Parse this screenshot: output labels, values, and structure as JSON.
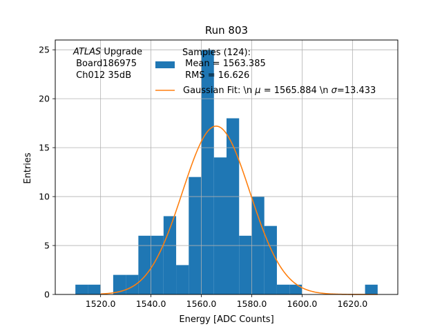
{
  "chart_data": {
    "type": "bar",
    "title": "Run 803",
    "xlabel": "Energy [ADC Counts]",
    "ylabel": "Entries",
    "xlim": [
      1502,
      1638
    ],
    "ylim": [
      0,
      26
    ],
    "grid": true,
    "x_ticks": [
      1520,
      1540,
      1560,
      1580,
      1600,
      1620
    ],
    "x_tick_labels": [
      "1520.0",
      "1540.0",
      "1560.0",
      "1580.0",
      "1600.0",
      "1620.0"
    ],
    "y_ticks": [
      0,
      5,
      10,
      15,
      20,
      25
    ],
    "y_tick_labels": [
      "0",
      "5",
      "10",
      "15",
      "20",
      "25"
    ],
    "bin_edges": [
      1510,
      1515,
      1520,
      1525,
      1530,
      1535,
      1540,
      1545,
      1550,
      1555,
      1560,
      1565,
      1570,
      1575,
      1580,
      1585,
      1590,
      1595,
      1600,
      1605,
      1610,
      1615,
      1620,
      1625,
      1630
    ],
    "series": [
      {
        "name": "Samples (124):\n Mean = 1563.385\n RMS = 16.626",
        "kind": "histogram",
        "color": "#1f77b4",
        "values": [
          1,
          1,
          0,
          2,
          2,
          6,
          6,
          8,
          3,
          12,
          25,
          14,
          18,
          6,
          10,
          7,
          1,
          1,
          0,
          0,
          0,
          0,
          0,
          1
        ]
      },
      {
        "name": "Gaussian Fit: \\n μ = 1565.884 \\n σ=13.433",
        "kind": "line",
        "color": "#ff7f0e",
        "mu": 1565.884,
        "sigma": 13.433,
        "amplitude": 17.2,
        "x_range": [
          1520,
          1630
        ]
      }
    ],
    "legend": {
      "placement": "top-right",
      "lines": [
        "Samples (124):",
        " Mean = 1563.385",
        " RMS = 16.626"
      ],
      "fit_label_prefix": "Gaussian Fit: \\n ",
      "fit_mu_symbol": "μ",
      "fit_mu_text": " = 1565.884 \\n ",
      "fit_sigma_symbol": "σ",
      "fit_sigma_text": "=13.433"
    },
    "annotation": {
      "italic": "ATLAS",
      "rest": " Upgrade",
      "lines": [
        " Board186975",
        " Ch012 35dB"
      ]
    }
  }
}
